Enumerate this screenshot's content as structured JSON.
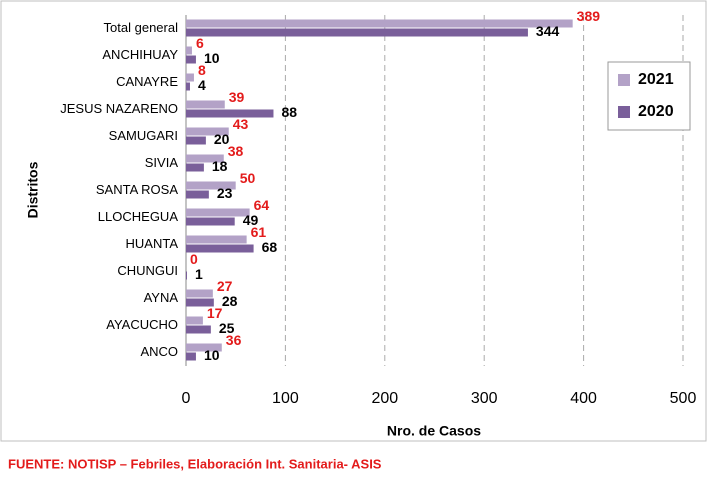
{
  "chart_data": {
    "type": "hbar",
    "categories": [
      "Total general",
      "ANCHIHUAY",
      "CANAYRE",
      "JESUS NAZARENO",
      "SAMUGARI",
      "SIVIA",
      "SANTA ROSA",
      "LLOCHEGUA",
      "HUANTA",
      "CHUNGUI",
      "AYNA",
      "AYACUCHO",
      "ANCO"
    ],
    "series": [
      {
        "name": "2021",
        "color": "#b3a2c7",
        "label_color": "#e31b1b",
        "values": [
          389,
          6,
          8,
          39,
          43,
          38,
          50,
          64,
          61,
          0,
          27,
          17,
          36
        ]
      },
      {
        "name": "2020",
        "color": "#7a5f9a",
        "label_color": "#000000",
        "values": [
          344,
          10,
          4,
          88,
          20,
          18,
          23,
          49,
          68,
          1,
          28,
          25,
          10
        ]
      }
    ],
    "xlim": [
      0,
      500
    ],
    "xticks": [
      0,
      100,
      200,
      300,
      400,
      500
    ],
    "grid": true,
    "xlabel": "Nro. de Casos",
    "ylabel": "Distritos",
    "legend": "right",
    "source": "FUENTE:  NOTISP – Febriles, Elaboración Int. Sanitaria- ASIS"
  }
}
